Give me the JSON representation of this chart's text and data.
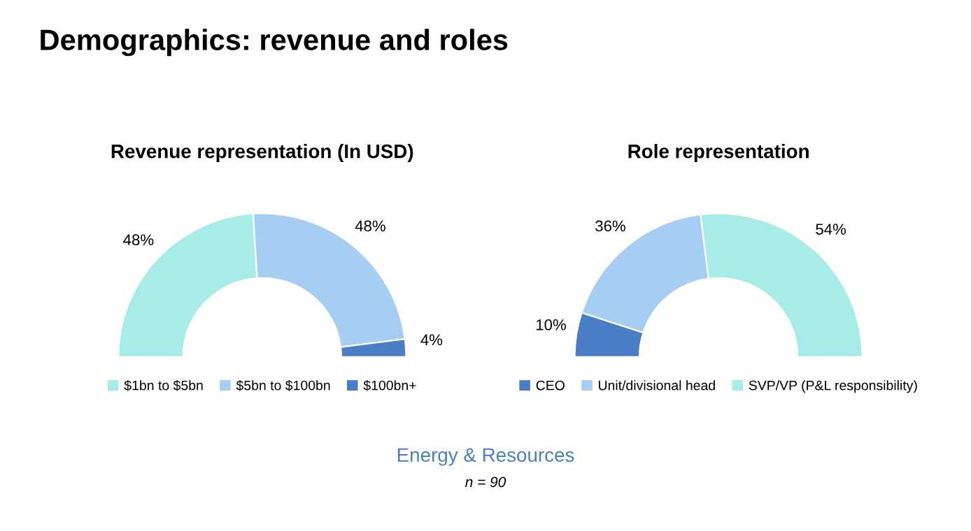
{
  "chart_data": [
    {
      "type": "donut",
      "title": "Revenue representation (In USD)",
      "categories": [
        "$1bn to $5bn",
        "$5bn to $100bn",
        "$100bn+"
      ],
      "values": [
        48,
        48,
        4
      ],
      "colors": [
        "#a8ece8",
        "#a6cdf2",
        "#4a7ec4"
      ],
      "value_labels": [
        "48%",
        "48%",
        "4%"
      ],
      "legend": "bottom",
      "annotations": [
        "Demographics: revenue and roles",
        "Energy & Resources",
        "n = 90"
      ]
    },
    {
      "type": "donut",
      "title": "Role representation",
      "categories": [
        "CEO",
        "Unit/divisional head",
        "SVP/VP (P&L responsibility)"
      ],
      "values": [
        10,
        36,
        54
      ],
      "colors": [
        "#4a7ec4",
        "#a6cdf2",
        "#a8ece8"
      ],
      "value_labels": [
        "10%",
        "36%",
        "54%"
      ],
      "legend": "bottom"
    }
  ]
}
